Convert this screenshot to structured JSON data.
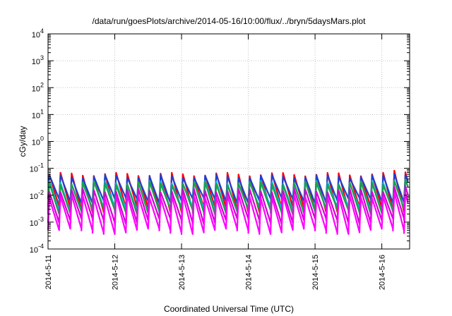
{
  "chart_data": {
    "type": "line",
    "title": "/data/run/goesPlots/archive/2014-05-16/10:00/flux/../bryn/5daysMars.plot",
    "xlabel": "Coordinated Universal Time (UTC)",
    "ylabel": "cGy/day",
    "yscale": "log",
    "ylim": [
      0.0001,
      10000
    ],
    "xlim": [
      "2014-05-11T00:00",
      "2014-05-16T10:00"
    ],
    "grid": true,
    "legend": "none",
    "x_ticks": [
      "2014-5-11",
      "2014-5-12",
      "2014-5-13",
      "2014-5-14",
      "2014-5-15",
      "2014-5-16"
    ],
    "y_ticks": [
      {
        "base": "10",
        "exp": "-4"
      },
      {
        "base": "10",
        "exp": "-3"
      },
      {
        "base": "10",
        "exp": "-2"
      },
      {
        "base": "10",
        "exp": "-1"
      },
      {
        "base": "10",
        "exp": "0"
      },
      {
        "base": "10",
        "exp": "1"
      },
      {
        "base": "10",
        "exp": "2"
      },
      {
        "base": "10",
        "exp": "3"
      },
      {
        "base": "10",
        "exp": "4"
      }
    ],
    "period_hours": 4,
    "series": [
      {
        "color": "#ff0000",
        "peak": 0.06,
        "trough": 0.0035
      },
      {
        "color": "#1f3fd0",
        "peak": 0.05,
        "trough": 0.0075
      },
      {
        "color": "#00b8d8",
        "peak": 0.03,
        "trough": 0.0035
      },
      {
        "color": "#1aa34a",
        "peak": 0.028,
        "trough": 0.003
      },
      {
        "color": "#d400d4",
        "peak": 0.015,
        "trough": 0.0013
      },
      {
        "color": "#ff00ff",
        "peak": 0.009,
        "trough": 0.00055
      }
    ]
  }
}
